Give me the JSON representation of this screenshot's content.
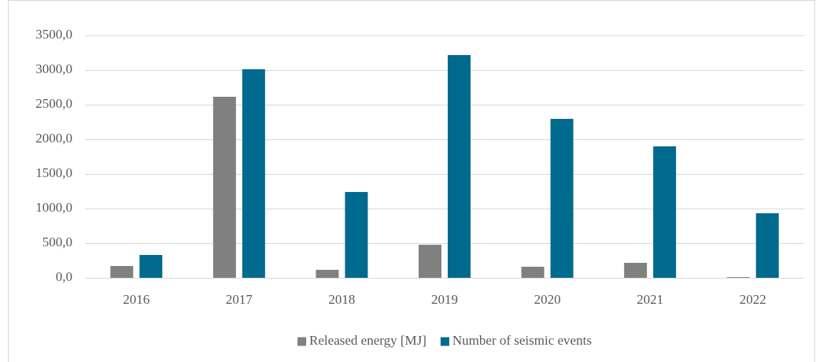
{
  "chart_data": {
    "type": "bar",
    "categories": [
      "2016",
      "2017",
      "2018",
      "2019",
      "2020",
      "2021",
      "2022"
    ],
    "series": [
      {
        "name": "Released energy [MJ]",
        "color": "#808080",
        "values": [
          170,
          2614,
          115,
          477,
          160,
          216,
          10
        ]
      },
      {
        "name": "Number of seismic events",
        "color": "#006a8e",
        "values": [
          330,
          3011,
          1239,
          3216,
          2295,
          1898,
          932
        ]
      }
    ],
    "ylim": [
      0,
      3500
    ],
    "yticks": [
      {
        "value": 0,
        "label": "0,0"
      },
      {
        "value": 500,
        "label": "500,0"
      },
      {
        "value": 1000,
        "label": "1000,0"
      },
      {
        "value": 1500,
        "label": "1500,0"
      },
      {
        "value": 2000,
        "label": "2000,0"
      },
      {
        "value": 2500,
        "label": "2500,0"
      },
      {
        "value": 3000,
        "label": "3000,0"
      },
      {
        "value": 3500,
        "label": "3500,0"
      }
    ],
    "grid": true,
    "legend": "bottom"
  }
}
